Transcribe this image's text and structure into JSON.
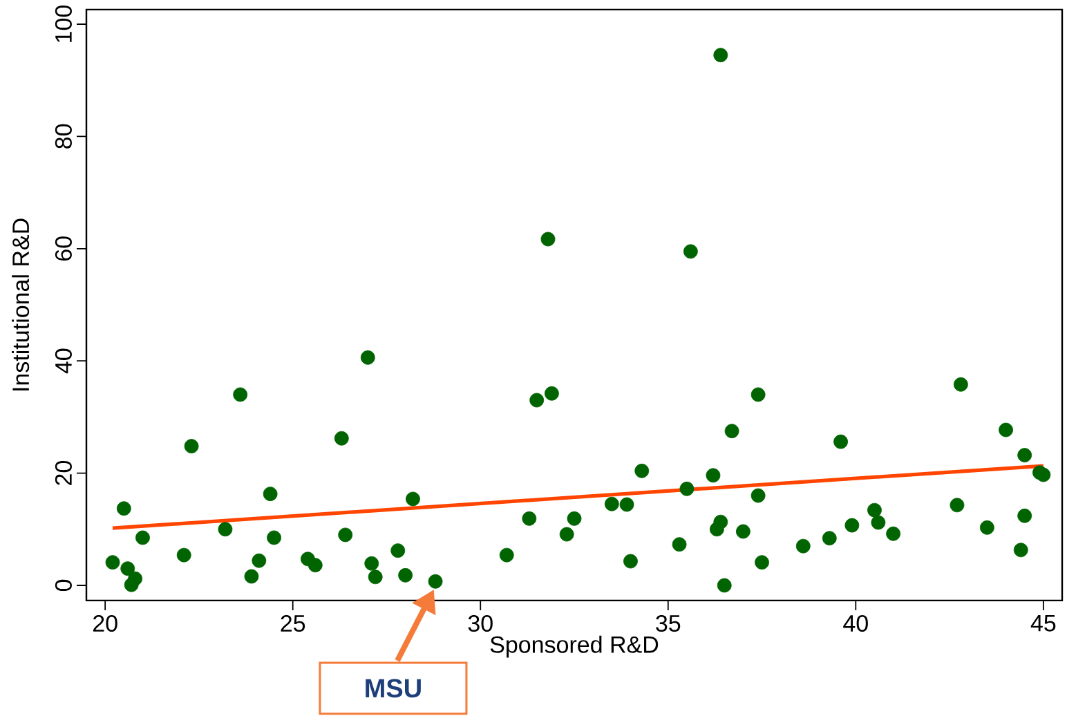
{
  "chart_data": {
    "type": "scatter",
    "xlabel": "Sponsored R&D",
    "ylabel": "Institutional R&D",
    "xlim": [
      19.5,
      45.5
    ],
    "ylim": [
      -2.7,
      102.6
    ],
    "xticks": [
      20,
      25,
      30,
      35,
      40,
      45
    ],
    "yticks": [
      0,
      20,
      40,
      60,
      80,
      100
    ],
    "series": [
      {
        "marker": "circle",
        "color": "#006400",
        "x": [
          20.2,
          20.5,
          20.6,
          20.8,
          20.7,
          21.0,
          22.1,
          22.3,
          23.2,
          23.6,
          23.9,
          24.1,
          24.4,
          24.5,
          25.4,
          25.6,
          26.3,
          26.4,
          27.0,
          27.1,
          27.2,
          27.8,
          28.0,
          28.2,
          28.8,
          30.7,
          31.3,
          31.5,
          31.8,
          31.9,
          32.3,
          32.5,
          33.5,
          33.9,
          34.0,
          34.3,
          35.3,
          35.5,
          35.6,
          36.2,
          36.3,
          36.4,
          36.4,
          36.5,
          36.7,
          37.0,
          37.4,
          37.4,
          37.5,
          38.6,
          39.3,
          39.6,
          39.9,
          40.5,
          40.6,
          41.0,
          42.7,
          42.8,
          43.5,
          44.0,
          44.4,
          44.5,
          44.5,
          44.9,
          45.0
        ],
        "values": [
          4.1,
          13.7,
          3.0,
          1.2,
          0.1,
          8.5,
          5.4,
          24.8,
          10.0,
          34.0,
          1.6,
          4.4,
          16.3,
          8.5,
          4.7,
          3.6,
          26.2,
          9.0,
          40.6,
          3.9,
          1.5,
          6.2,
          1.8,
          15.4,
          0.7,
          5.4,
          11.9,
          33.0,
          61.7,
          34.2,
          9.1,
          11.9,
          14.5,
          14.4,
          4.3,
          20.4,
          7.3,
          17.2,
          59.5,
          19.6,
          10.0,
          11.3,
          94.5,
          0.0,
          27.5,
          9.6,
          34.0,
          16.0,
          4.1,
          7.0,
          8.4,
          25.6,
          10.7,
          13.4,
          11.2,
          9.2,
          14.3,
          35.8,
          10.3,
          27.7,
          6.3,
          23.2,
          12.4,
          20.1,
          19.7
        ]
      },
      {
        "type": "line",
        "color": "#ff4500",
        "x": [
          20.2,
          45.0
        ],
        "values": [
          10.2,
          21.3
        ]
      }
    ],
    "annotations": [
      "**MSU**"
    ]
  }
}
